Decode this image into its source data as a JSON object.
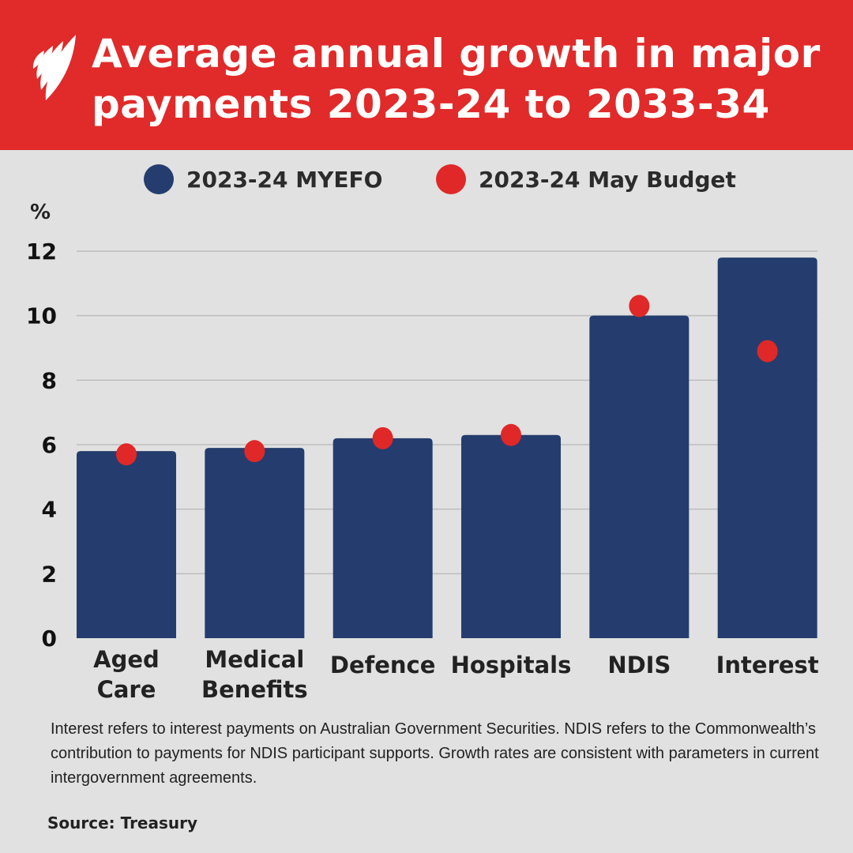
{
  "header": {
    "title": "Average annual growth in major payments 2023-24 to 2033-34",
    "logo": "SBS"
  },
  "colors": {
    "header_bg": "#e12a2a",
    "bar": "#243d6e",
    "dot": "#e02828",
    "background": "#e1e1e1"
  },
  "chart_data": {
    "type": "bar",
    "title": "Average annual growth in major payments 2023-24 to 2033-34",
    "ylabel": "%",
    "xlabel": "",
    "ylim": [
      0,
      12
    ],
    "yticks": [
      "0",
      "2",
      "4",
      "6",
      "8",
      "10",
      "12"
    ],
    "grid": true,
    "legend_placement": "top",
    "categories": [
      [
        "Aged",
        "Care"
      ],
      [
        "Medical",
        "Benefits"
      ],
      [
        "Defence"
      ],
      [
        "Hospitals"
      ],
      [
        "NDIS"
      ],
      [
        "Interest"
      ]
    ],
    "series": [
      {
        "name": "2023-24 MYEFO",
        "mark": "bar",
        "color": "#243d6e",
        "values": [
          5.8,
          5.9,
          6.2,
          6.3,
          10.0,
          11.8
        ]
      },
      {
        "name": "2023-24 May Budget",
        "mark": "dot",
        "color": "#e02828",
        "values": [
          5.7,
          5.8,
          6.2,
          6.3,
          10.3,
          8.9
        ]
      }
    ]
  },
  "footnote": "Interest refers to interest payments on Australian Government Securities. NDIS refers to the Commonwealth’s contribution to payments for NDIS participant supports. Growth rates are consistent with parameters in current intergovernment agreements.",
  "source": "Source: Treasury"
}
